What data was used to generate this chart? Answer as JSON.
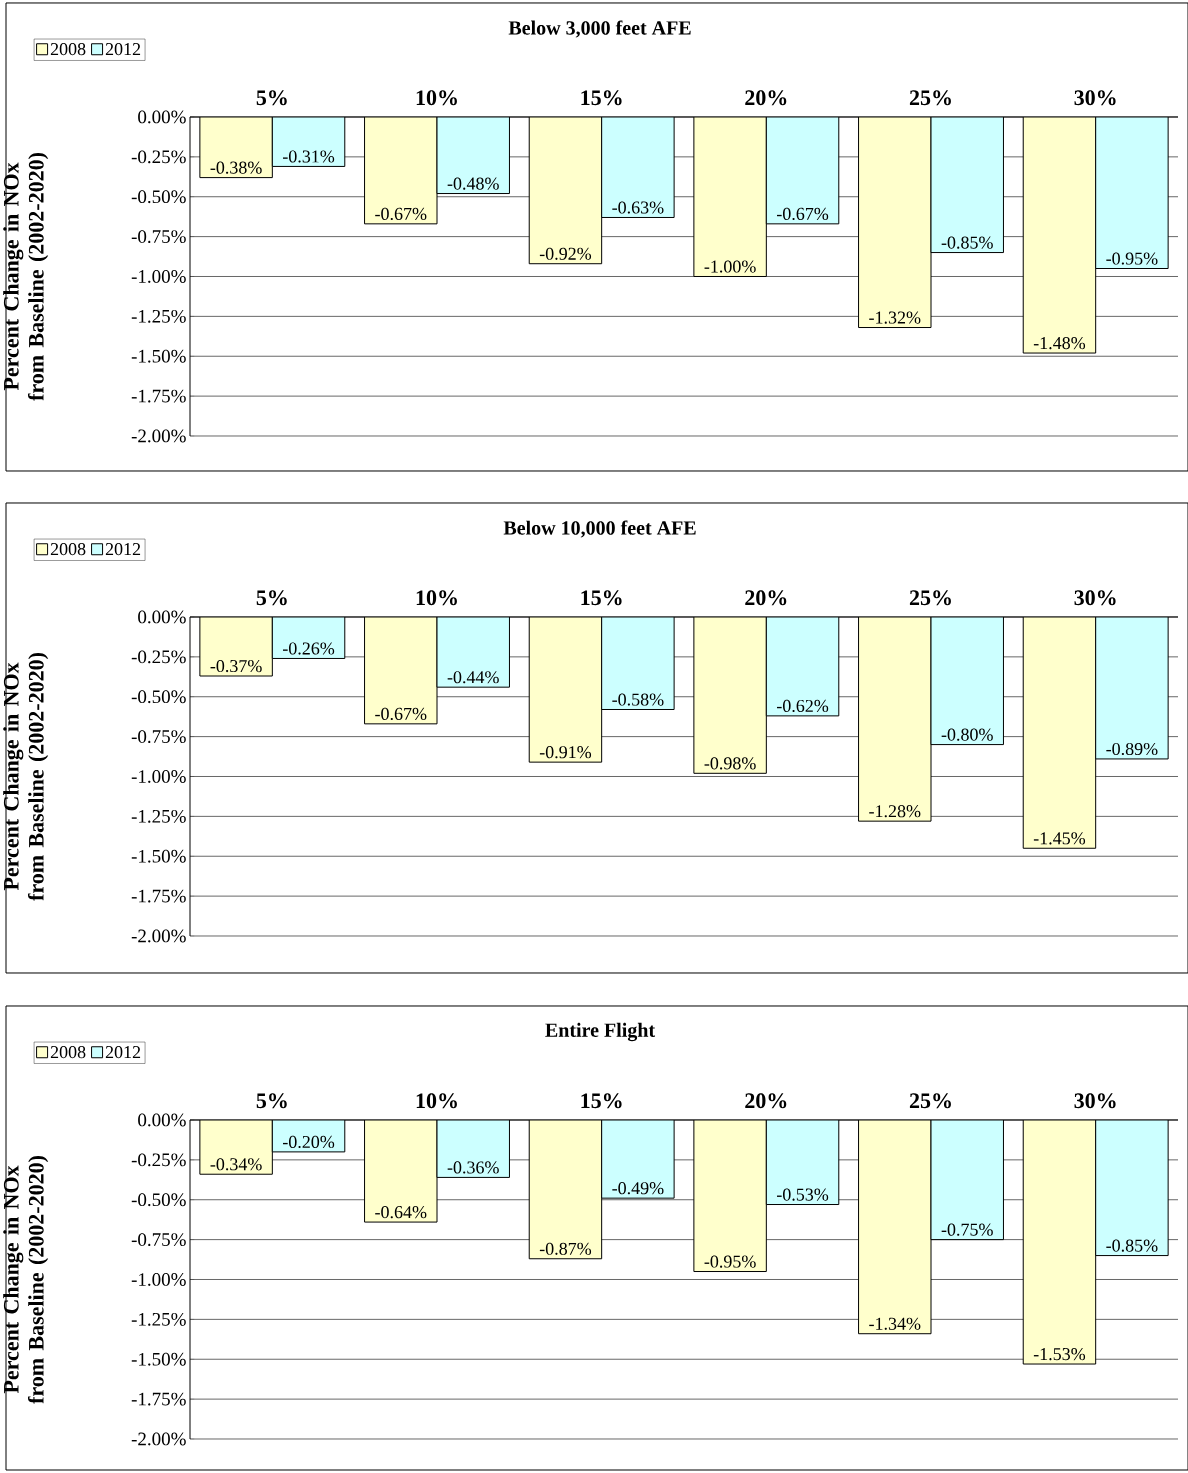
{
  "chart_data": [
    {
      "type": "bar",
      "title": "Below 3,000 feet AFE",
      "ylabel": "Percent Change in NOx from Baseline (2002-2020)",
      "categories": [
        "5%",
        "10%",
        "15%",
        "20%",
        "25%",
        "30%"
      ],
      "series": [
        {
          "name": "2008",
          "color": "#ffffcc",
          "values": [
            -0.38,
            -0.67,
            -0.92,
            -1.0,
            -1.32,
            -1.48
          ],
          "value_labels": [
            "-0.38%",
            "-0.67%",
            "-0.92%",
            "-1.00%",
            "-1.32%",
            "-1.48%"
          ]
        },
        {
          "name": "2012",
          "color": "#ccffff",
          "values": [
            -0.31,
            -0.48,
            -0.63,
            -0.67,
            -0.85,
            -0.95
          ],
          "value_labels": [
            "-0.31%",
            "-0.48%",
            "-0.63%",
            "-0.67%",
            "-0.85%",
            "-0.95%"
          ]
        }
      ],
      "ylim": [
        -2,
        0
      ],
      "yticks": [
        {
          "value": 0,
          "label": "0.00%"
        },
        {
          "value": -0.25,
          "label": "-0.25%"
        },
        {
          "value": -0.5,
          "label": "-0.50%"
        },
        {
          "value": -0.75,
          "label": "-0.75%"
        },
        {
          "value": -1,
          "label": "-1.00%"
        },
        {
          "value": -1.25,
          "label": "-1.25%"
        },
        {
          "value": -1.5,
          "label": "-1.50%"
        },
        {
          "value": -1.75,
          "label": "-1.75%"
        },
        {
          "value": -2,
          "label": "-2.00%"
        }
      ],
      "grid": "y",
      "legend": "top left"
    },
    {
      "type": "bar",
      "title": "Below 10,000 feet AFE",
      "ylabel": "Percent Change in NOx from Baseline (2002-2020)",
      "categories": [
        "5%",
        "10%",
        "15%",
        "20%",
        "25%",
        "30%"
      ],
      "series": [
        {
          "name": "2008",
          "color": "#ffffcc",
          "values": [
            -0.37,
            -0.67,
            -0.91,
            -0.98,
            -1.28,
            -1.45
          ],
          "value_labels": [
            "-0.37%",
            "-0.67%",
            "-0.91%",
            "-0.98%",
            "-1.28%",
            "-1.45%"
          ]
        },
        {
          "name": "2012",
          "color": "#ccffff",
          "values": [
            -0.26,
            -0.44,
            -0.58,
            -0.62,
            -0.8,
            -0.89
          ],
          "value_labels": [
            "-0.26%",
            "-0.44%",
            "-0.58%",
            "-0.62%",
            "-0.80%",
            "-0.89%"
          ]
        }
      ],
      "ylim": [
        -2,
        0
      ],
      "yticks": [
        {
          "value": 0,
          "label": "0.00%"
        },
        {
          "value": -0.25,
          "label": "-0.25%"
        },
        {
          "value": -0.5,
          "label": "-0.50%"
        },
        {
          "value": -0.75,
          "label": "-0.75%"
        },
        {
          "value": -1,
          "label": "-1.00%"
        },
        {
          "value": -1.25,
          "label": "-1.25%"
        },
        {
          "value": -1.5,
          "label": "-1.50%"
        },
        {
          "value": -1.75,
          "label": "-1.75%"
        },
        {
          "value": -2,
          "label": "-2.00%"
        }
      ],
      "grid": "y",
      "legend": "top left"
    },
    {
      "type": "bar",
      "title": "Entire Flight",
      "ylabel": "Percent Change in NOx from Baseline (2002-2020)",
      "categories": [
        "5%",
        "10%",
        "15%",
        "20%",
        "25%",
        "30%"
      ],
      "series": [
        {
          "name": "2008",
          "color": "#ffffcc",
          "values": [
            -0.34,
            -0.64,
            -0.87,
            -0.95,
            -1.34,
            -1.53
          ],
          "value_labels": [
            "-0.34%",
            "-0.64%",
            "-0.87%",
            "-0.95%",
            "-1.34%",
            "-1.53%"
          ]
        },
        {
          "name": "2012",
          "color": "#ccffff",
          "values": [
            -0.2,
            -0.36,
            -0.49,
            -0.53,
            -0.75,
            -0.85
          ],
          "value_labels": [
            "-0.20%",
            "-0.36%",
            "-0.49%",
            "-0.53%",
            "-0.75%",
            "-0.85%"
          ]
        }
      ],
      "ylim": [
        -2,
        0
      ],
      "yticks": [
        {
          "value": 0,
          "label": "0.00%"
        },
        {
          "value": -0.25,
          "label": "-0.25%"
        },
        {
          "value": -0.5,
          "label": "-0.50%"
        },
        {
          "value": -0.75,
          "label": "-0.75%"
        },
        {
          "value": -1,
          "label": "-1.00%"
        },
        {
          "value": -1.25,
          "label": "-1.25%"
        },
        {
          "value": -1.5,
          "label": "-1.50%"
        },
        {
          "value": -1.75,
          "label": "-1.75%"
        },
        {
          "value": -2,
          "label": "-2.00%"
        }
      ],
      "grid": "y",
      "legend": "top left"
    }
  ]
}
